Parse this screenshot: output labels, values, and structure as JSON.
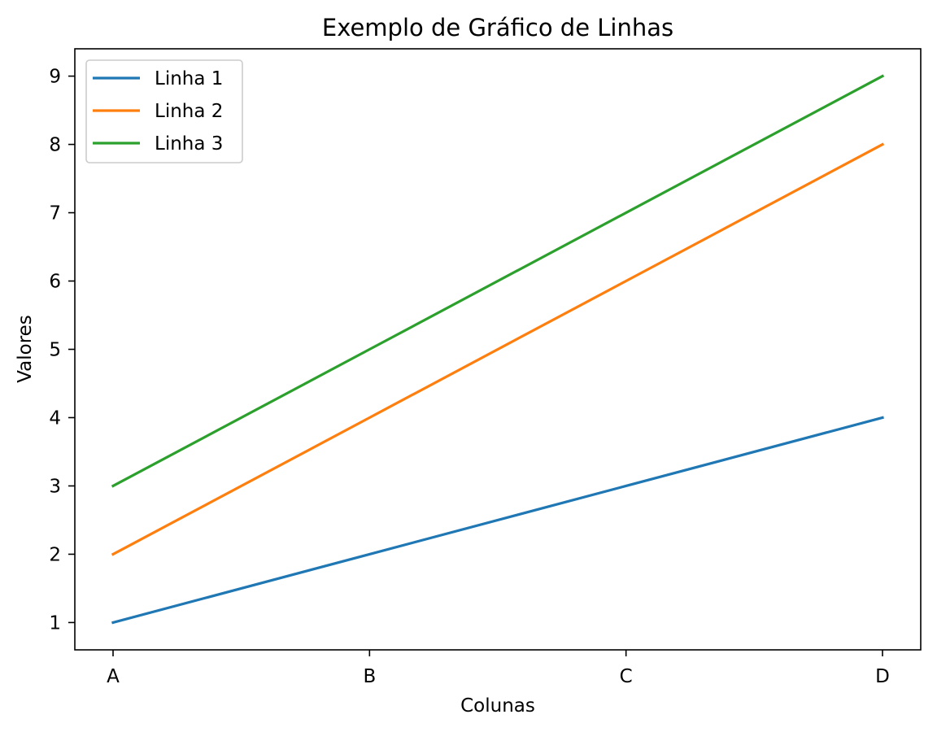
{
  "chart_data": {
    "type": "line",
    "title": "Exemplo de Gráfico de Linhas",
    "xlabel": "Colunas",
    "ylabel": "Valores",
    "categories": [
      "A",
      "B",
      "C",
      "D"
    ],
    "yticks": [
      1,
      2,
      3,
      4,
      5,
      6,
      7,
      8,
      9
    ],
    "ylim": [
      0.6,
      9.4
    ],
    "grid": false,
    "legend_position": "top-left",
    "series": [
      {
        "name": "Linha 1",
        "values": [
          1,
          2,
          3,
          4
        ],
        "color": "#1f77b4"
      },
      {
        "name": "Linha 2",
        "values": [
          2,
          4,
          6,
          8
        ],
        "color": "#ff7f0e"
      },
      {
        "name": "Linha 3",
        "values": [
          3,
          5,
          7,
          9
        ],
        "color": "#2ca02c"
      }
    ]
  }
}
